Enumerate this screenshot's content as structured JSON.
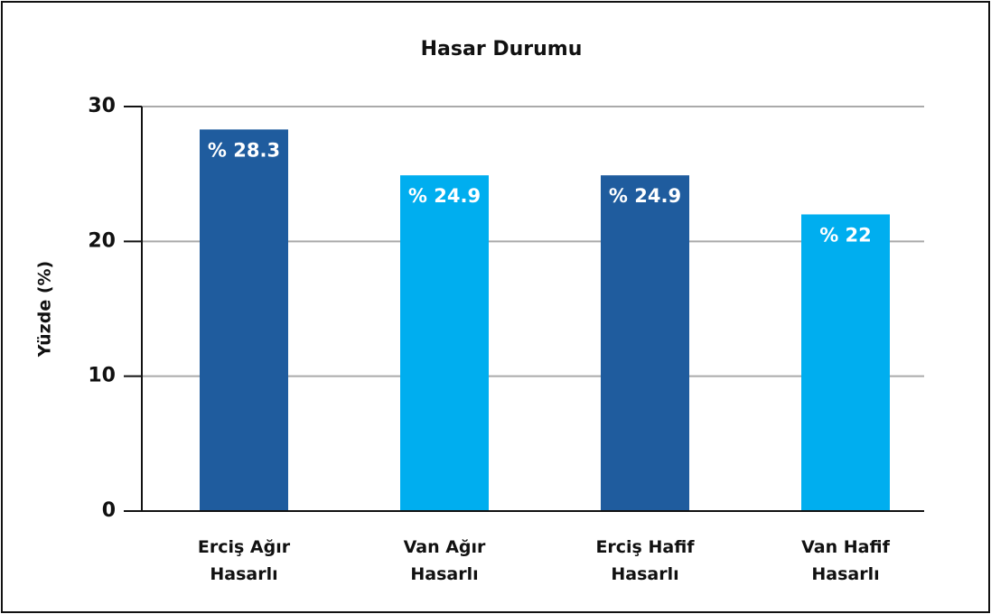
{
  "chart_data": {
    "type": "bar",
    "title": "Hasar Durumu",
    "y_label": "Yüzde (%)",
    "categories": [
      "Erciş Ağır Hasarlı",
      "Van Ağır Hasarlı",
      "Erciş Hafif Hasarlı",
      "Van Hafif Hasarlı"
    ],
    "values": [
      28.3,
      24.9,
      24.9,
      22
    ],
    "value_labels": [
      "% 28.3",
      "% 24.9",
      "% 24.9",
      "% 22"
    ],
    "colors": [
      "#1f5c9e",
      "#00aeef",
      "#1f5c9e",
      "#00aeef"
    ],
    "ylim": [
      0,
      30
    ],
    "yticks": [
      0,
      10,
      20,
      30
    ],
    "grid": true
  }
}
